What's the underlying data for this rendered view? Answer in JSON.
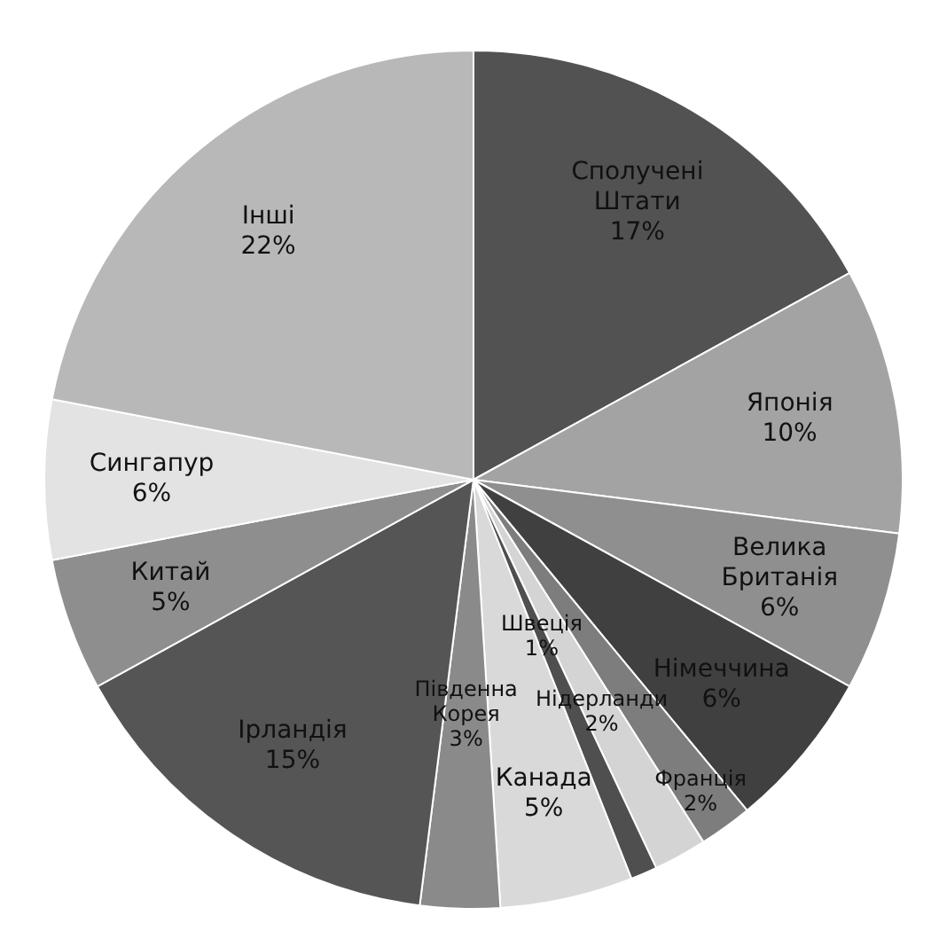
{
  "chart_data": {
    "type": "pie",
    "categories": [
      "Сполучені Штати",
      "Японія",
      "Велика Британія",
      "Німеччина",
      "Франція",
      "Нідерланди",
      "Швеція",
      "Канада",
      "Південна Корея",
      "Ірландія",
      "Китай",
      "Сингапур",
      "Інші"
    ],
    "values": [
      17,
      10,
      6,
      6,
      2,
      2,
      1,
      5,
      3,
      15,
      5,
      6,
      22
    ],
    "value_labels": [
      "17%",
      "10%",
      "6%",
      "6%",
      "2%",
      "2%",
      "1%",
      "5%",
      "3%",
      "15%",
      "5%",
      "6%",
      "22%"
    ],
    "colors": [
      "#525252",
      "#a3a3a3",
      "#8f8f8f",
      "#404040",
      "#7d7d7d",
      "#d4d4d4",
      "#4f4f4f",
      "#d9d9d9",
      "#8a8a8a",
      "#555555",
      "#8e8e8e",
      "#e3e3e3",
      "#b8b8b8"
    ],
    "legend": false
  }
}
